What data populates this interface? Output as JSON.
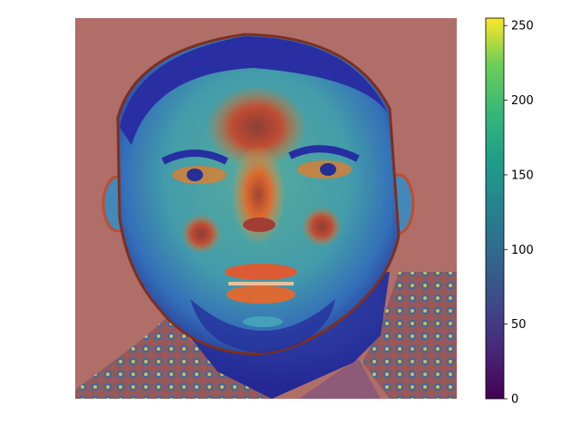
{
  "chart_data": {
    "type": "heatmap",
    "title": "",
    "xlabel": "",
    "ylabel": "",
    "axes_visible": false,
    "image_subject": "face-heatmap-overlay",
    "colormap": "viridis",
    "overlay_colormap": "jet",
    "colorbar": {
      "orientation": "vertical",
      "placement": "right",
      "range": [
        0,
        255
      ],
      "ticks": [
        0,
        50,
        100,
        150,
        200,
        250
      ],
      "tick_labels": [
        "0",
        "50",
        "100",
        "150",
        "200",
        "250"
      ]
    },
    "colors": {
      "background_overlay": "#b06e6a",
      "cool_region": "#1a2a9a",
      "mid_region": "#3aa6a0",
      "warm_region": "#e0702a",
      "hot_region": "#8a3a30"
    }
  }
}
